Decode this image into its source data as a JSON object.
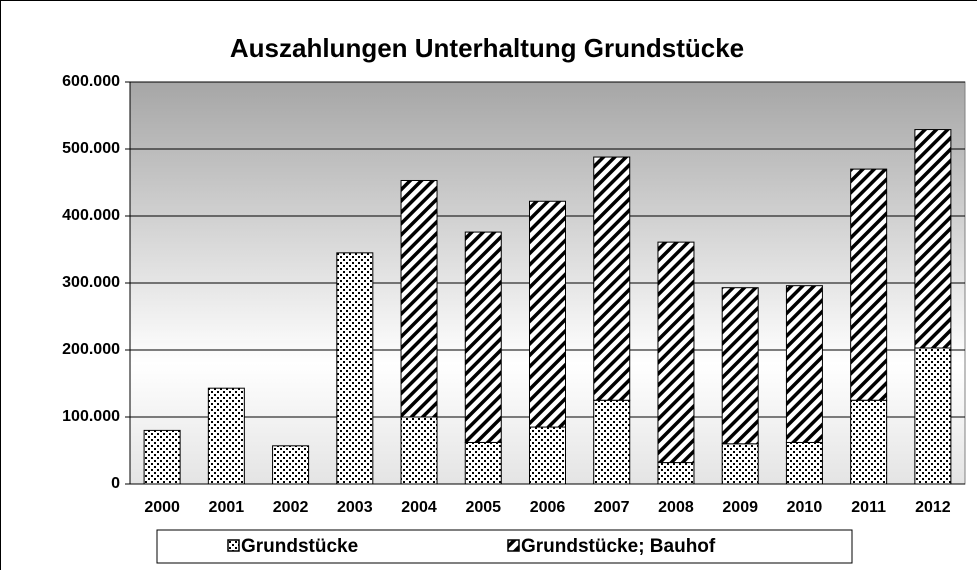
{
  "chart_data": {
    "type": "stacked_bar",
    "title": "Auszahlungen Unterhaltung Grundstücke",
    "categories": [
      "2000",
      "2001",
      "2002",
      "2003",
      "2004",
      "2005",
      "2006",
      "2007",
      "2008",
      "2009",
      "2010",
      "2011",
      "2012"
    ],
    "series": [
      {
        "name": "Grundstücke",
        "color": "#000000",
        "pattern": "dots",
        "values": [
          80000,
          143000,
          57000,
          345000,
          100000,
          62000,
          85000,
          125000,
          32000,
          60000,
          62000,
          125000,
          203000
        ]
      },
      {
        "name": "Grundstücke; Bauhof",
        "color": "#000000",
        "pattern": "hatch",
        "values": [
          0,
          0,
          0,
          0,
          353000,
          314000,
          337000,
          363000,
          329000,
          233000,
          234000,
          345000,
          326000
        ]
      }
    ],
    "ylim": [
      0,
      600000
    ],
    "yticks": [
      0,
      {
        "value": 100000,
        "label": "100.000"
      },
      {
        "value": 200000,
        "label": "200.000"
      },
      {
        "value": 300000,
        "label": "300.000"
      },
      {
        "value": 400000,
        "label": "400.000"
      },
      {
        "value": 500000,
        "label": "500.000"
      },
      {
        "value": 600000,
        "label": "600.000"
      }
    ],
    "grid": true,
    "legend": "bottom"
  }
}
